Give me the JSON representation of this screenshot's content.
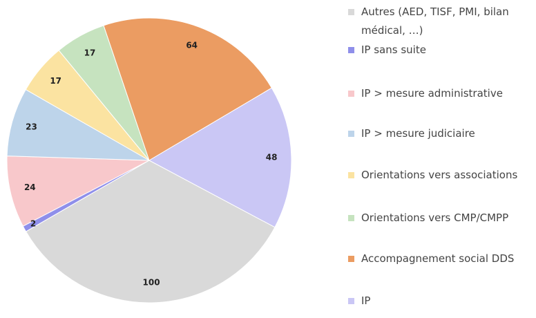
{
  "chart_data": {
    "type": "pie",
    "categories": [
      "Autres (AED, TISF, PMI, bilan médical, …)",
      "IP sans suite",
      "IP > mesure administrative",
      "IP > mesure judiciaire",
      "Orientations vers associations",
      "Orientations vers CMP/CMPP",
      "Accompagnement social DDS",
      "IP"
    ],
    "values": [
      100,
      2,
      24,
      23,
      17,
      17,
      64,
      48
    ],
    "colors": [
      "#d9d9d9",
      "#8f8fea",
      "#f8c8cb",
      "#bdd4ea",
      "#fbe3a1",
      "#c6e3bf",
      "#eb9c62",
      "#cac7f5"
    ]
  }
}
